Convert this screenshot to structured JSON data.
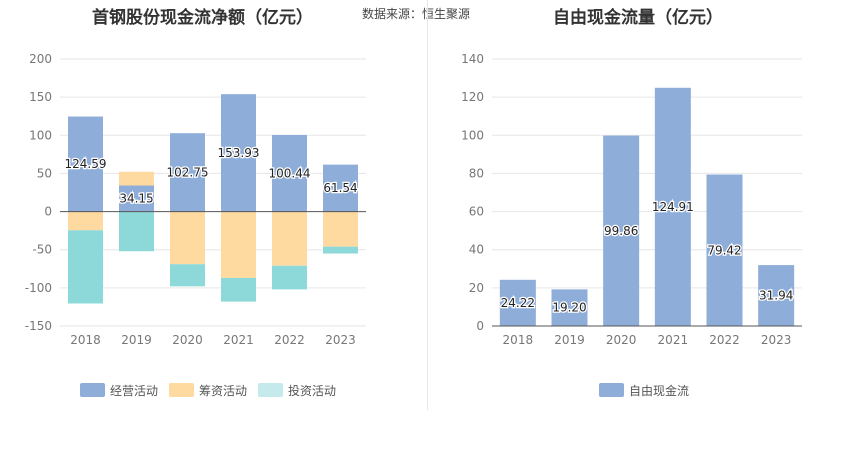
{
  "source_note": "数据来源：恒生聚源",
  "colors": {
    "operating": "#8eadd9",
    "financing": "#fed9a0",
    "investing": "#8dd8d9",
    "fcf": "#8eadd9",
    "legend_investing": "#c4eaeb"
  },
  "chart_data": [
    {
      "type": "bar",
      "stacked": true,
      "title": "首钢股份现金流净额（亿元）",
      "categories": [
        "2018",
        "2019",
        "2020",
        "2021",
        "2022",
        "2023"
      ],
      "ylim": [
        -150,
        200
      ],
      "yticks": [
        "200",
        "150",
        "100",
        "50",
        "0",
        "-50",
        "-100",
        "-150"
      ],
      "yticks_values": [
        200,
        150,
        100,
        50,
        0,
        -50,
        -100,
        -150
      ],
      "series": [
        {
          "name": "经营活动",
          "values": [
            124.59,
            34.15,
            102.75,
            153.93,
            100.44,
            61.54
          ],
          "labels": [
            "124.59",
            "34.15",
            "102.75",
            "153.93",
            "100.44",
            "61.54"
          ]
        },
        {
          "name": "筹资活动",
          "values": [
            -24.5,
            18,
            -69,
            -87,
            -71,
            -46
          ]
        },
        {
          "name": "投资活动",
          "values": [
            -96,
            -52,
            -29,
            -31,
            -31,
            -9
          ]
        }
      ],
      "legend": [
        "经营活动",
        "筹资活动",
        "投资活动"
      ],
      "grid": true
    },
    {
      "type": "bar",
      "title": "自由现金流量（亿元）",
      "categories": [
        "2018",
        "2019",
        "2020",
        "2021",
        "2022",
        "2023"
      ],
      "ylim": [
        0,
        140
      ],
      "yticks": [
        "140",
        "120",
        "100",
        "80",
        "60",
        "40",
        "20",
        "0"
      ],
      "yticks_values": [
        140,
        120,
        100,
        80,
        60,
        40,
        20,
        0
      ],
      "series": [
        {
          "name": "自由现金流",
          "values": [
            24.22,
            19.2,
            99.86,
            124.91,
            79.42,
            31.94
          ],
          "labels": [
            "24.22",
            "19.20",
            "99.86",
            "124.91",
            "79.42",
            "31.94"
          ]
        }
      ],
      "legend": [
        "自由现金流"
      ],
      "grid": true
    }
  ]
}
